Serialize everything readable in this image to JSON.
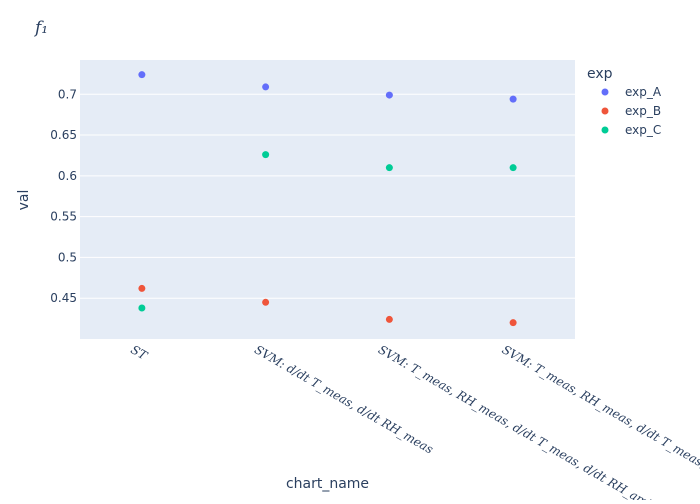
{
  "chart_data": {
    "type": "scatter",
    "title": "f₁",
    "xlabel": "chart_name",
    "ylabel": "val",
    "categories": [
      "ST",
      "SVM: d/dt T_meas, d/dt RH_meas",
      "SVM: T_meas, RH_meas, d/dt T_meas, d/dt RH_amb",
      "SVM: T_meas, RH_meas, d/dt T_meas, d/dt T_amb"
    ],
    "yticks": [
      0.45,
      0.5,
      0.55,
      0.6,
      0.65,
      0.7
    ],
    "ylim": [
      0.4,
      0.742
    ],
    "grid": true,
    "legend": {
      "title": "exp",
      "placement": "top-right"
    },
    "series": [
      {
        "name": "exp_A",
        "color": "#636efa",
        "values": [
          0.724,
          0.709,
          0.699,
          0.694
        ]
      },
      {
        "name": "exp_B",
        "color": "#ef553b",
        "values": [
          0.462,
          0.445,
          0.424,
          0.42
        ]
      },
      {
        "name": "exp_C",
        "color": "#00cc96",
        "values": [
          0.438,
          0.626,
          0.61,
          0.61
        ]
      }
    ]
  }
}
